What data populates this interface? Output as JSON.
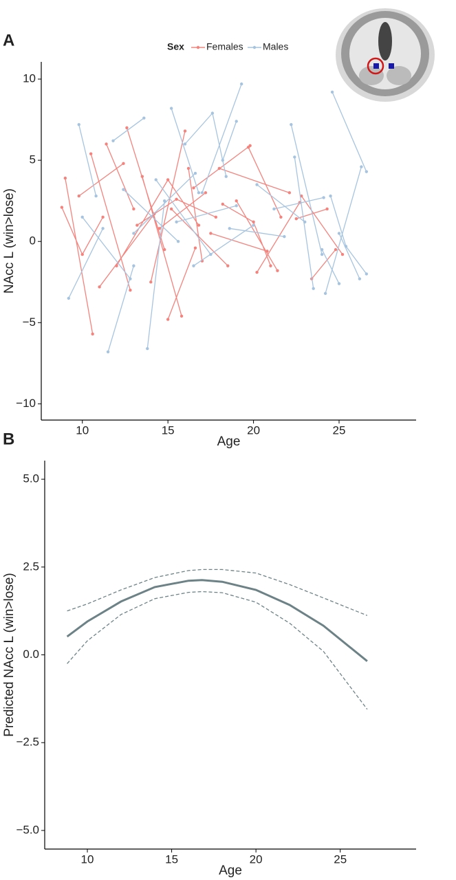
{
  "chart_data": [
    {
      "type": "line",
      "panel_label": "A",
      "xlabel": "Age",
      "ylabel": "NAcc L (win>lose)",
      "legend_title": "Sex",
      "legend": "top",
      "points": true,
      "xlim": [
        7.6,
        29.5
      ],
      "xticks": [
        10,
        15,
        20,
        25
      ],
      "ylim": [
        -11,
        11.06
      ],
      "yticks": [
        {
          "value": -10,
          "label": "−10"
        },
        {
          "value": -5,
          "label": "−5"
        },
        0,
        5,
        10
      ],
      "series": [
        {
          "name": "Females",
          "color": "#f4837d",
          "linestyle": "solid",
          "x": [
            9.0,
            10.6,
            null,
            8.8,
            10.0,
            11.2,
            null,
            10.5,
            12.8,
            null,
            11.4,
            13.0,
            null,
            12.6,
            14.8,
            null,
            12.0,
            15.0,
            16.8,
            null,
            13.5,
            15.8,
            null,
            14.0,
            16.0,
            null,
            14.5,
            17.2,
            null,
            15.2,
            18.5,
            null,
            16.2,
            17.0,
            null,
            16.5,
            19.8,
            null,
            17.5,
            20.8,
            null,
            18.0,
            22.1,
            null,
            19.0,
            21.4,
            null,
            19.7,
            21.6,
            null,
            20.2,
            22.7,
            null,
            22.5,
            24.3,
            null,
            23.4,
            24.8,
            null,
            22.8,
            25.2,
            null,
            9.8,
            12.4,
            null,
            11.0,
            14.2,
            null,
            13.2,
            15.5,
            17.8,
            null,
            15.0,
            16.6,
            null,
            18.2,
            20.0,
            21.0
          ],
          "values": [
            3.9,
            -5.7,
            null,
            2.1,
            -0.8,
            1.5,
            null,
            5.4,
            -3.0,
            null,
            6.0,
            2.0,
            null,
            7.0,
            -0.5,
            null,
            -1.5,
            3.8,
            1.0,
            null,
            4.0,
            -4.6,
            null,
            -2.5,
            6.8,
            null,
            0.8,
            3.0,
            null,
            2.0,
            -1.5,
            null,
            4.5,
            -1.2,
            null,
            3.3,
            5.9,
            null,
            0.5,
            -0.6,
            null,
            4.5,
            3.0,
            null,
            2.5,
            -1.8,
            null,
            5.8,
            1.5,
            null,
            -1.9,
            2.4,
            null,
            1.4,
            2.0,
            null,
            -2.3,
            -0.5,
            null,
            2.8,
            -0.8,
            null,
            2.8,
            4.8,
            null,
            -2.8,
            1.7,
            null,
            1.0,
            2.6,
            1.5,
            null,
            -4.8,
            -0.4,
            null,
            2.3,
            1.2,
            -1.5
          ]
        },
        {
          "name": "Males",
          "color": "#a6c4e0",
          "linestyle": "solid",
          "x": [
            9.2,
            11.2,
            null,
            9.8,
            10.8,
            null,
            11.5,
            13.0,
            null,
            13.8,
            14.8,
            null,
            11.8,
            13.6,
            null,
            15.2,
            16.8,
            null,
            16.0,
            17.6,
            18.4,
            null,
            17.0,
            19.3,
            null,
            18.2,
            19.0,
            null,
            12.4,
            15.6,
            null,
            13.0,
            16.6,
            null,
            14.3,
            17.5,
            null,
            15.5,
            19.0,
            null,
            16.5,
            20.0,
            null,
            20.2,
            23.0,
            null,
            21.2,
            24.1,
            null,
            22.2,
            24.0,
            null,
            22.4,
            23.5,
            null,
            24.6,
            26.6,
            null,
            24.2,
            26.3,
            null,
            24.5,
            25.4,
            26.6,
            null,
            25.0,
            26.2,
            null,
            10.0,
            12.8,
            null,
            18.6,
            21.8,
            null,
            24.0,
            25.0
          ],
          "values": [
            -3.5,
            0.8,
            null,
            7.2,
            2.8,
            null,
            -6.8,
            -1.5,
            null,
            -6.6,
            2.5,
            null,
            6.2,
            7.6,
            null,
            8.2,
            3.0,
            null,
            6.0,
            7.9,
            4.0,
            null,
            3.0,
            9.7,
            null,
            5.0,
            7.4,
            null,
            3.2,
            0.0,
            null,
            0.5,
            4.2,
            null,
            3.8,
            -0.8,
            null,
            1.2,
            2.2,
            null,
            -1.5,
            1.0,
            null,
            3.5,
            1.2,
            null,
            2.0,
            2.7,
            null,
            7.2,
            -0.8,
            null,
            5.2,
            -2.9,
            null,
            9.2,
            4.3,
            null,
            -3.2,
            4.6,
            null,
            2.8,
            -0.3,
            -2.0,
            null,
            0.5,
            -2.3,
            null,
            1.5,
            -2.3,
            null,
            0.8,
            0.3,
            null,
            -0.5,
            -2.6
          ]
        }
      ]
    },
    {
      "type": "line",
      "panel_label": "B",
      "xlabel": "Age",
      "ylabel": "Predicted NAcc L (win>lose)",
      "points": false,
      "xlim": [
        7.47,
        29.5
      ],
      "xticks": [
        10,
        15,
        20,
        25
      ],
      "ylim": [
        -5.53,
        5.53
      ],
      "yticks": [
        {
          "value": -5,
          "label": "−5.0"
        },
        {
          "value": -2.5,
          "label": "−2.5"
        },
        {
          "value": 0,
          "label": "0.0"
        },
        2.5,
        {
          "value": 5,
          "label": "5.0"
        }
      ],
      "series": [
        {
          "color": "#6d8286",
          "linestyle": "solid",
          "x": [
            8.8,
            10,
            12,
            14,
            16,
            16.8,
            18,
            20,
            22,
            24,
            26.6
          ],
          "values": [
            0.52,
            0.95,
            1.52,
            1.93,
            2.11,
            2.13,
            2.08,
            1.85,
            1.42,
            0.83,
            -0.18
          ]
        },
        {
          "color": "#6d8286",
          "linestyle": "dashed",
          "x": [
            8.8,
            10,
            12,
            14,
            16,
            16.8,
            18,
            20,
            22,
            24,
            26.6
          ],
          "values": [
            1.25,
            1.45,
            1.85,
            2.2,
            2.4,
            2.43,
            2.43,
            2.33,
            2.0,
            1.62,
            1.12
          ]
        },
        {
          "color": "#6d8286",
          "linestyle": "dashed",
          "x": [
            8.8,
            10,
            12,
            14,
            16,
            16.8,
            18,
            20,
            22,
            24,
            26.6
          ],
          "values": [
            -0.25,
            0.4,
            1.15,
            1.6,
            1.78,
            1.8,
            1.77,
            1.5,
            0.9,
            0.1,
            -1.55
          ]
        }
      ]
    }
  ]
}
